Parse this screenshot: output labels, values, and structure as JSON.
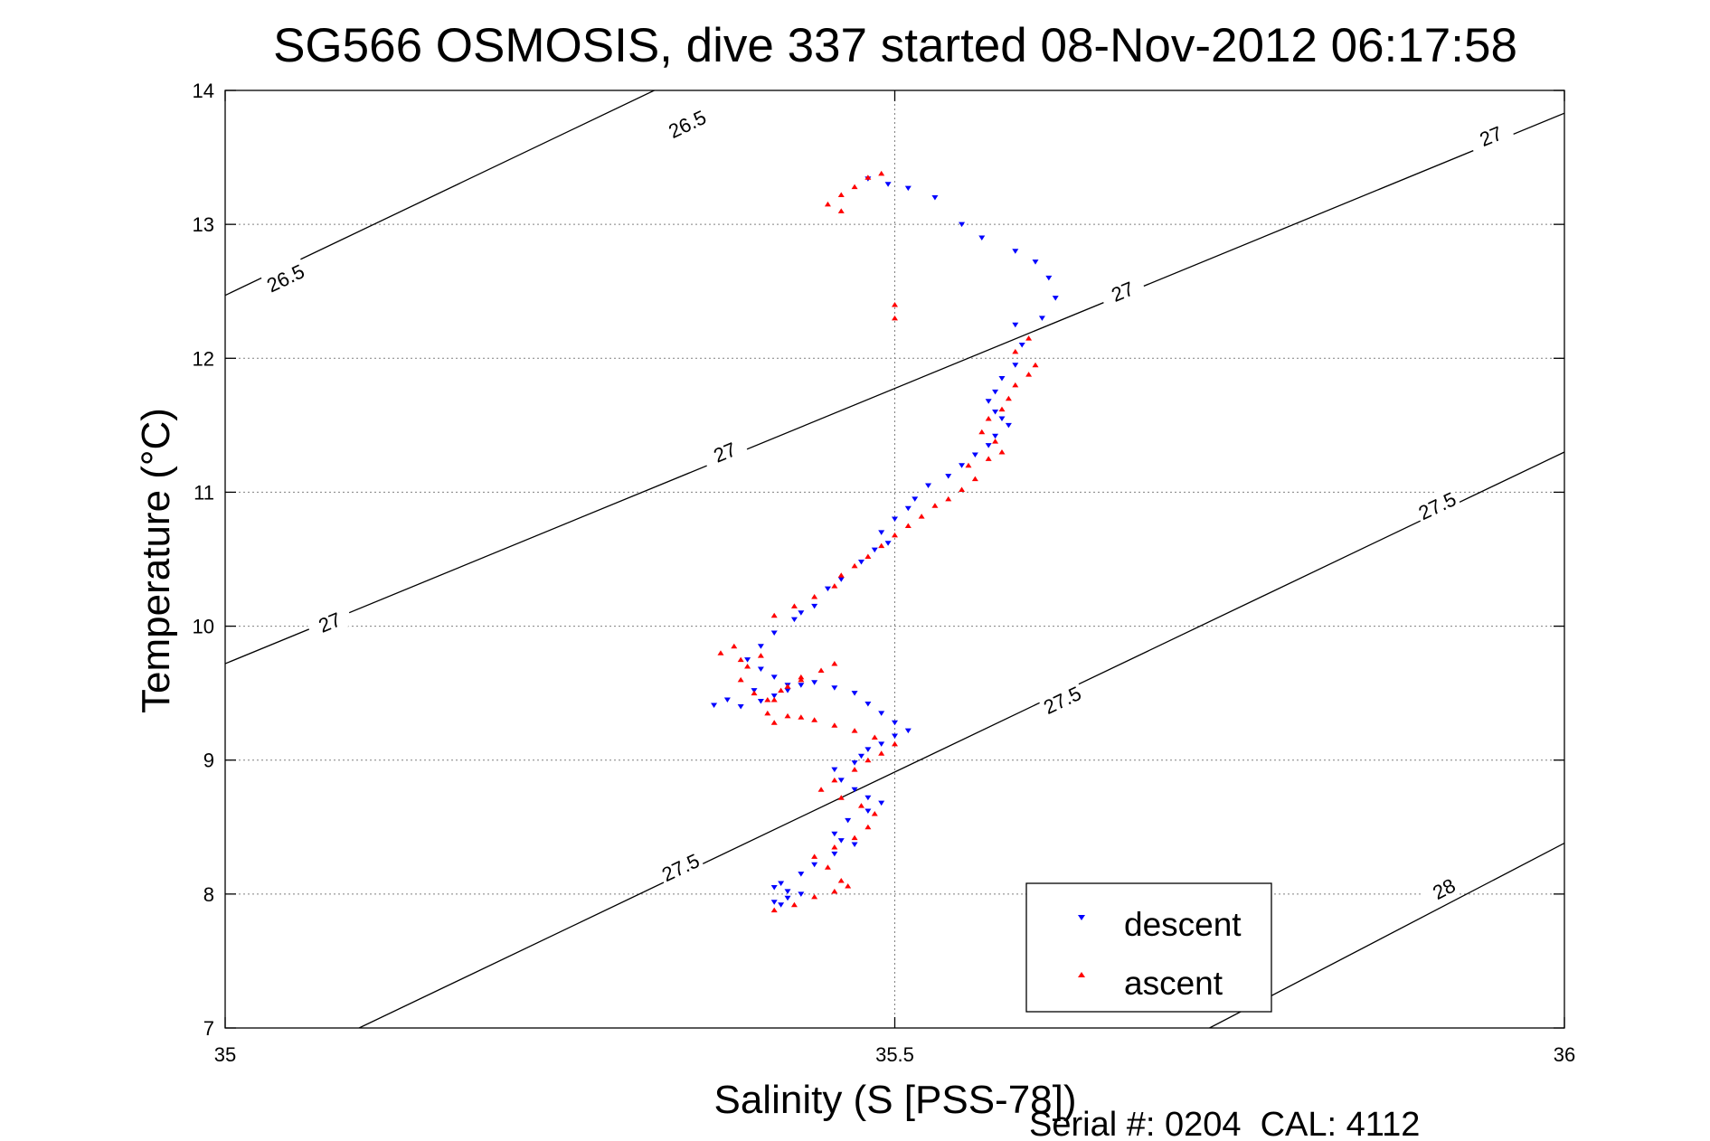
{
  "chart_data": {
    "type": "scatter",
    "title": "SG566 OSMOSIS, dive 337 started 08-Nov-2012 06:17:58",
    "xlabel": "Salinity (S [PSS-78])",
    "ylabel": "Temperature (°C)",
    "xlim": [
      35,
      36
    ],
    "ylim": [
      7,
      14
    ],
    "xticks": [
      "35",
      "35.5",
      "36"
    ],
    "yticks": [
      "7",
      "8",
      "9",
      "10",
      "11",
      "12",
      "13",
      "14"
    ],
    "grid": true,
    "legend_position": "bottom-right",
    "footer": "Serial #: 0204  CAL: 4112",
    "contours": [
      {
        "value": "26.5",
        "points": [
          [
            35,
            12.47
          ],
          [
            35.4,
            14.38
          ]
        ],
        "labels": [
          {
            "x": 35.045,
            "y": 12.6
          },
          {
            "x": 35.345,
            "y": 13.75
          }
        ]
      },
      {
        "value": "27",
        "points": [
          [
            35,
            9.72
          ],
          [
            36,
            13.83
          ]
        ],
        "labels": [
          {
            "x": 35.078,
            "y": 10.03
          },
          {
            "x": 35.373,
            "y": 11.3
          },
          {
            "x": 35.67,
            "y": 12.5
          },
          {
            "x": 35.945,
            "y": 13.66
          }
        ]
      },
      {
        "value": "27.5",
        "points": [
          [
            35.1,
            7.0
          ],
          [
            36,
            11.3
          ]
        ],
        "labels": [
          {
            "x": 35.34,
            "y": 8.2
          },
          {
            "x": 35.625,
            "y": 9.45
          },
          {
            "x": 35.905,
            "y": 10.9
          }
        ]
      },
      {
        "value": "28",
        "points": [
          [
            35.735,
            7.0
          ],
          [
            36,
            8.38
          ]
        ],
        "labels": [
          {
            "x": 35.91,
            "y": 8.04
          }
        ]
      }
    ],
    "series": [
      {
        "name": "descent",
        "color": "#0000ff",
        "marker": "triangle-down",
        "x": [
          35.48,
          35.495,
          35.51,
          35.53,
          35.55,
          35.565,
          35.59,
          35.605,
          35.615,
          35.62,
          35.61,
          35.59,
          35.595,
          35.59,
          35.58,
          35.575,
          35.57,
          35.575,
          35.58,
          35.585,
          35.575,
          35.57,
          35.56,
          35.55,
          35.54,
          35.525,
          35.515,
          35.51,
          35.5,
          35.49,
          35.495,
          35.485,
          35.475,
          35.46,
          35.45,
          35.44,
          35.43,
          35.425,
          35.41,
          35.4,
          35.39,
          35.4,
          35.41,
          35.42,
          35.395,
          35.375,
          35.365,
          35.385,
          35.4,
          35.41,
          35.42,
          35.43,
          35.44,
          35.455,
          35.47,
          35.48,
          35.49,
          35.5,
          35.51,
          35.5,
          35.49,
          35.48,
          35.475,
          35.47,
          35.455,
          35.46,
          35.47,
          35.48,
          35.49,
          35.48,
          35.465,
          35.455,
          35.46,
          35.47,
          35.455,
          35.44,
          35.43,
          35.415,
          35.41,
          35.42,
          35.43,
          35.42,
          35.41,
          35.415
        ],
        "y": [
          13.34,
          13.3,
          13.27,
          13.2,
          13.0,
          12.9,
          12.8,
          12.72,
          12.6,
          12.45,
          12.3,
          12.25,
          12.1,
          11.95,
          11.85,
          11.75,
          11.68,
          11.6,
          11.55,
          11.5,
          11.42,
          11.35,
          11.28,
          11.2,
          11.12,
          11.05,
          10.95,
          10.88,
          10.8,
          10.7,
          10.62,
          10.57,
          10.48,
          10.35,
          10.28,
          10.15,
          10.1,
          10.05,
          9.95,
          9.85,
          9.75,
          9.68,
          9.62,
          9.56,
          9.52,
          9.45,
          9.41,
          9.4,
          9.44,
          9.48,
          9.52,
          9.56,
          9.58,
          9.54,
          9.5,
          9.42,
          9.35,
          9.28,
          9.22,
          9.18,
          9.12,
          9.08,
          9.03,
          8.98,
          8.93,
          8.85,
          8.78,
          8.72,
          8.68,
          8.62,
          8.55,
          8.45,
          8.4,
          8.37,
          8.3,
          8.22,
          8.15,
          8.08,
          8.05,
          8.02,
          8.0,
          7.97,
          7.94,
          7.92
        ]
      },
      {
        "name": "ascent",
        "color": "#ff0000",
        "marker": "triangle-up",
        "x": [
          35.41,
          35.425,
          35.44,
          35.455,
          35.465,
          35.46,
          35.45,
          35.44,
          35.455,
          35.47,
          35.48,
          35.485,
          35.475,
          35.46,
          35.445,
          35.455,
          35.47,
          35.48,
          35.49,
          35.5,
          35.485,
          35.47,
          35.455,
          35.44,
          35.43,
          35.42,
          35.41,
          35.405,
          35.41,
          35.42,
          35.43,
          35.445,
          35.455,
          35.43,
          35.415,
          35.405,
          35.395,
          35.385,
          35.39,
          35.4,
          35.38,
          35.37,
          35.385,
          35.41,
          35.425,
          35.44,
          35.455,
          35.46,
          35.47,
          35.48,
          35.49,
          35.5,
          35.51,
          35.52,
          35.53,
          35.54,
          35.55,
          35.56,
          35.555,
          35.57,
          35.58,
          35.575,
          35.565,
          35.57,
          35.58,
          35.585,
          35.59,
          35.6,
          35.605,
          35.59,
          35.6,
          35.5,
          35.5,
          35.46,
          35.45,
          35.46,
          35.47,
          35.48,
          35.49
        ],
        "y": [
          7.88,
          7.92,
          7.98,
          8.02,
          8.06,
          8.1,
          8.2,
          8.28,
          8.35,
          8.42,
          8.5,
          8.6,
          8.66,
          8.72,
          8.78,
          8.85,
          8.93,
          9.0,
          9.05,
          9.12,
          9.17,
          9.22,
          9.26,
          9.3,
          9.32,
          9.33,
          9.28,
          9.35,
          9.45,
          9.55,
          9.62,
          9.67,
          9.72,
          9.6,
          9.52,
          9.45,
          9.5,
          9.6,
          9.7,
          9.78,
          9.85,
          9.8,
          9.75,
          10.08,
          10.15,
          10.22,
          10.3,
          10.38,
          10.45,
          10.52,
          10.6,
          10.68,
          10.75,
          10.82,
          10.9,
          10.95,
          11.02,
          11.1,
          11.2,
          11.25,
          11.3,
          11.38,
          11.45,
          11.55,
          11.62,
          11.7,
          11.8,
          11.88,
          11.95,
          12.05,
          12.15,
          12.3,
          12.4,
          13.1,
          13.15,
          13.22,
          13.28,
          13.35,
          13.38
        ]
      }
    ]
  }
}
